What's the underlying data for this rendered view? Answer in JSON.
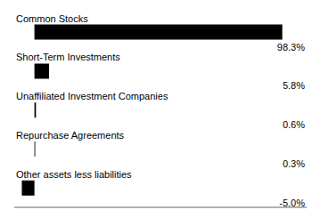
{
  "chart_data": {
    "type": "bar",
    "orientation": "horizontal",
    "categories": [
      "Common Stocks",
      "Short-Term Investments",
      "Unaffiliated Investment Companies",
      "Repurchase Agreements",
      "Other assets less liabilities"
    ],
    "values": [
      98.3,
      5.8,
      0.6,
      0.3,
      -5.0
    ],
    "value_labels": [
      "98.3%",
      "5.8%",
      "0.6%",
      "0.3%",
      "-5.0%"
    ],
    "data_labels": true,
    "color": "#000000",
    "xlim": [
      -8,
      108
    ],
    "tick_labels": false
  }
}
